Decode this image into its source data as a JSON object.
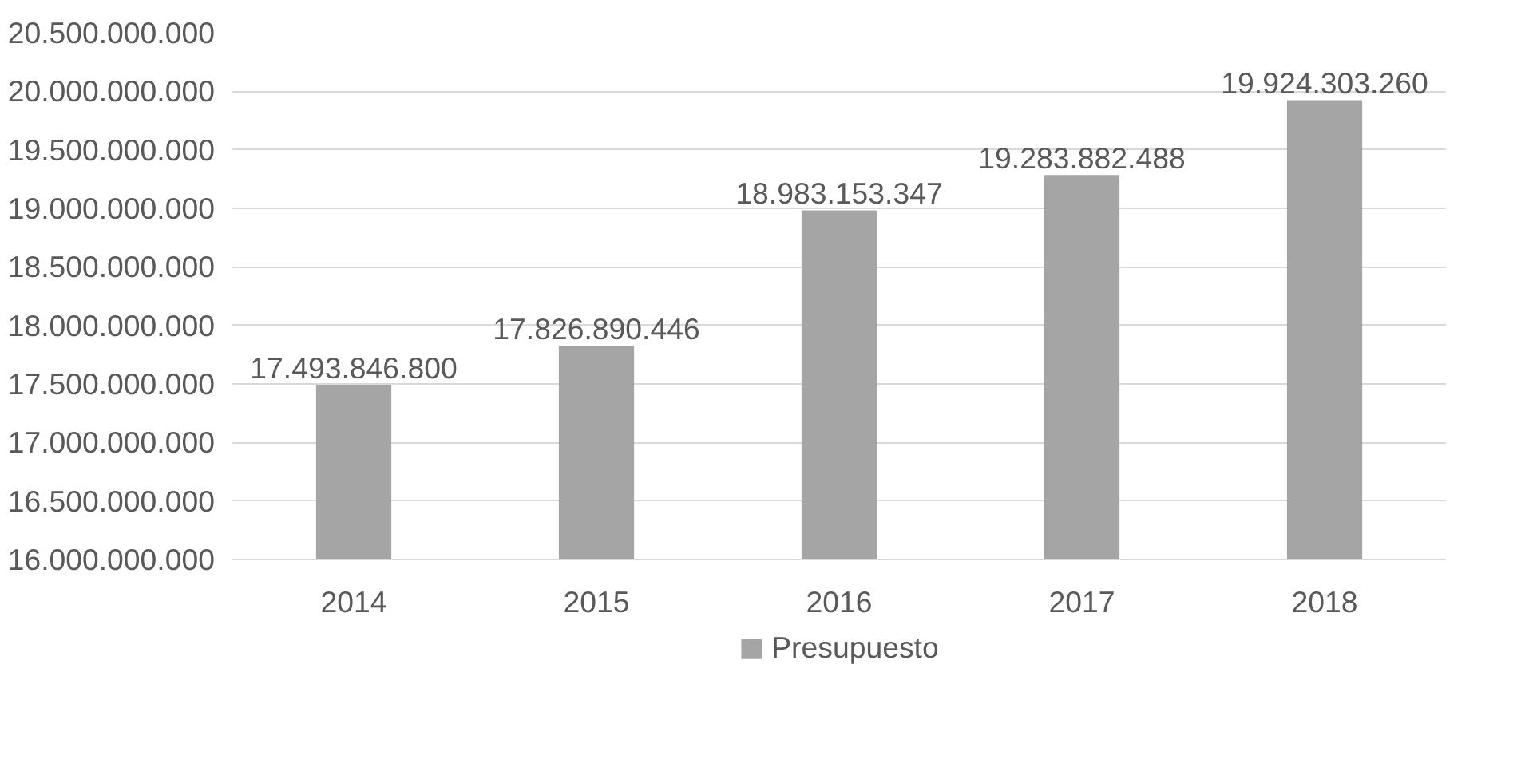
{
  "chart_data": {
    "type": "bar",
    "categories": [
      "2014",
      "2015",
      "2016",
      "2017",
      "2018"
    ],
    "series": [
      {
        "name": "Presupuesto",
        "color": "#a5a5a5",
        "values": [
          17493846800,
          17826890446,
          18983153347,
          19283882488,
          19924303260
        ],
        "value_labels": [
          "17.493.846.800",
          "17.826.890.446",
          "18.983.153.347",
          "19.283.882.488",
          "19.924.303.260"
        ]
      }
    ],
    "ylim": [
      16000000000,
      20500000000
    ],
    "yticks": [
      {
        "value": 16000000000,
        "label": "16.000.000.000"
      },
      {
        "value": 16500000000,
        "label": "16.500.000.000"
      },
      {
        "value": 17000000000,
        "label": "17.000.000.000"
      },
      {
        "value": 17500000000,
        "label": "17.500.000.000"
      },
      {
        "value": 18000000000,
        "label": "18.000.000.000"
      },
      {
        "value": 18500000000,
        "label": "18.500.000.000"
      },
      {
        "value": 19000000000,
        "label": "19.000.000.000"
      },
      {
        "value": 19500000000,
        "label": "19.500.000.000"
      },
      {
        "value": 20000000000,
        "label": "20.000.000.000"
      },
      {
        "value": 20500000000,
        "label": "20.500.000.000"
      }
    ],
    "grid": "y",
    "legend": "bottom"
  }
}
